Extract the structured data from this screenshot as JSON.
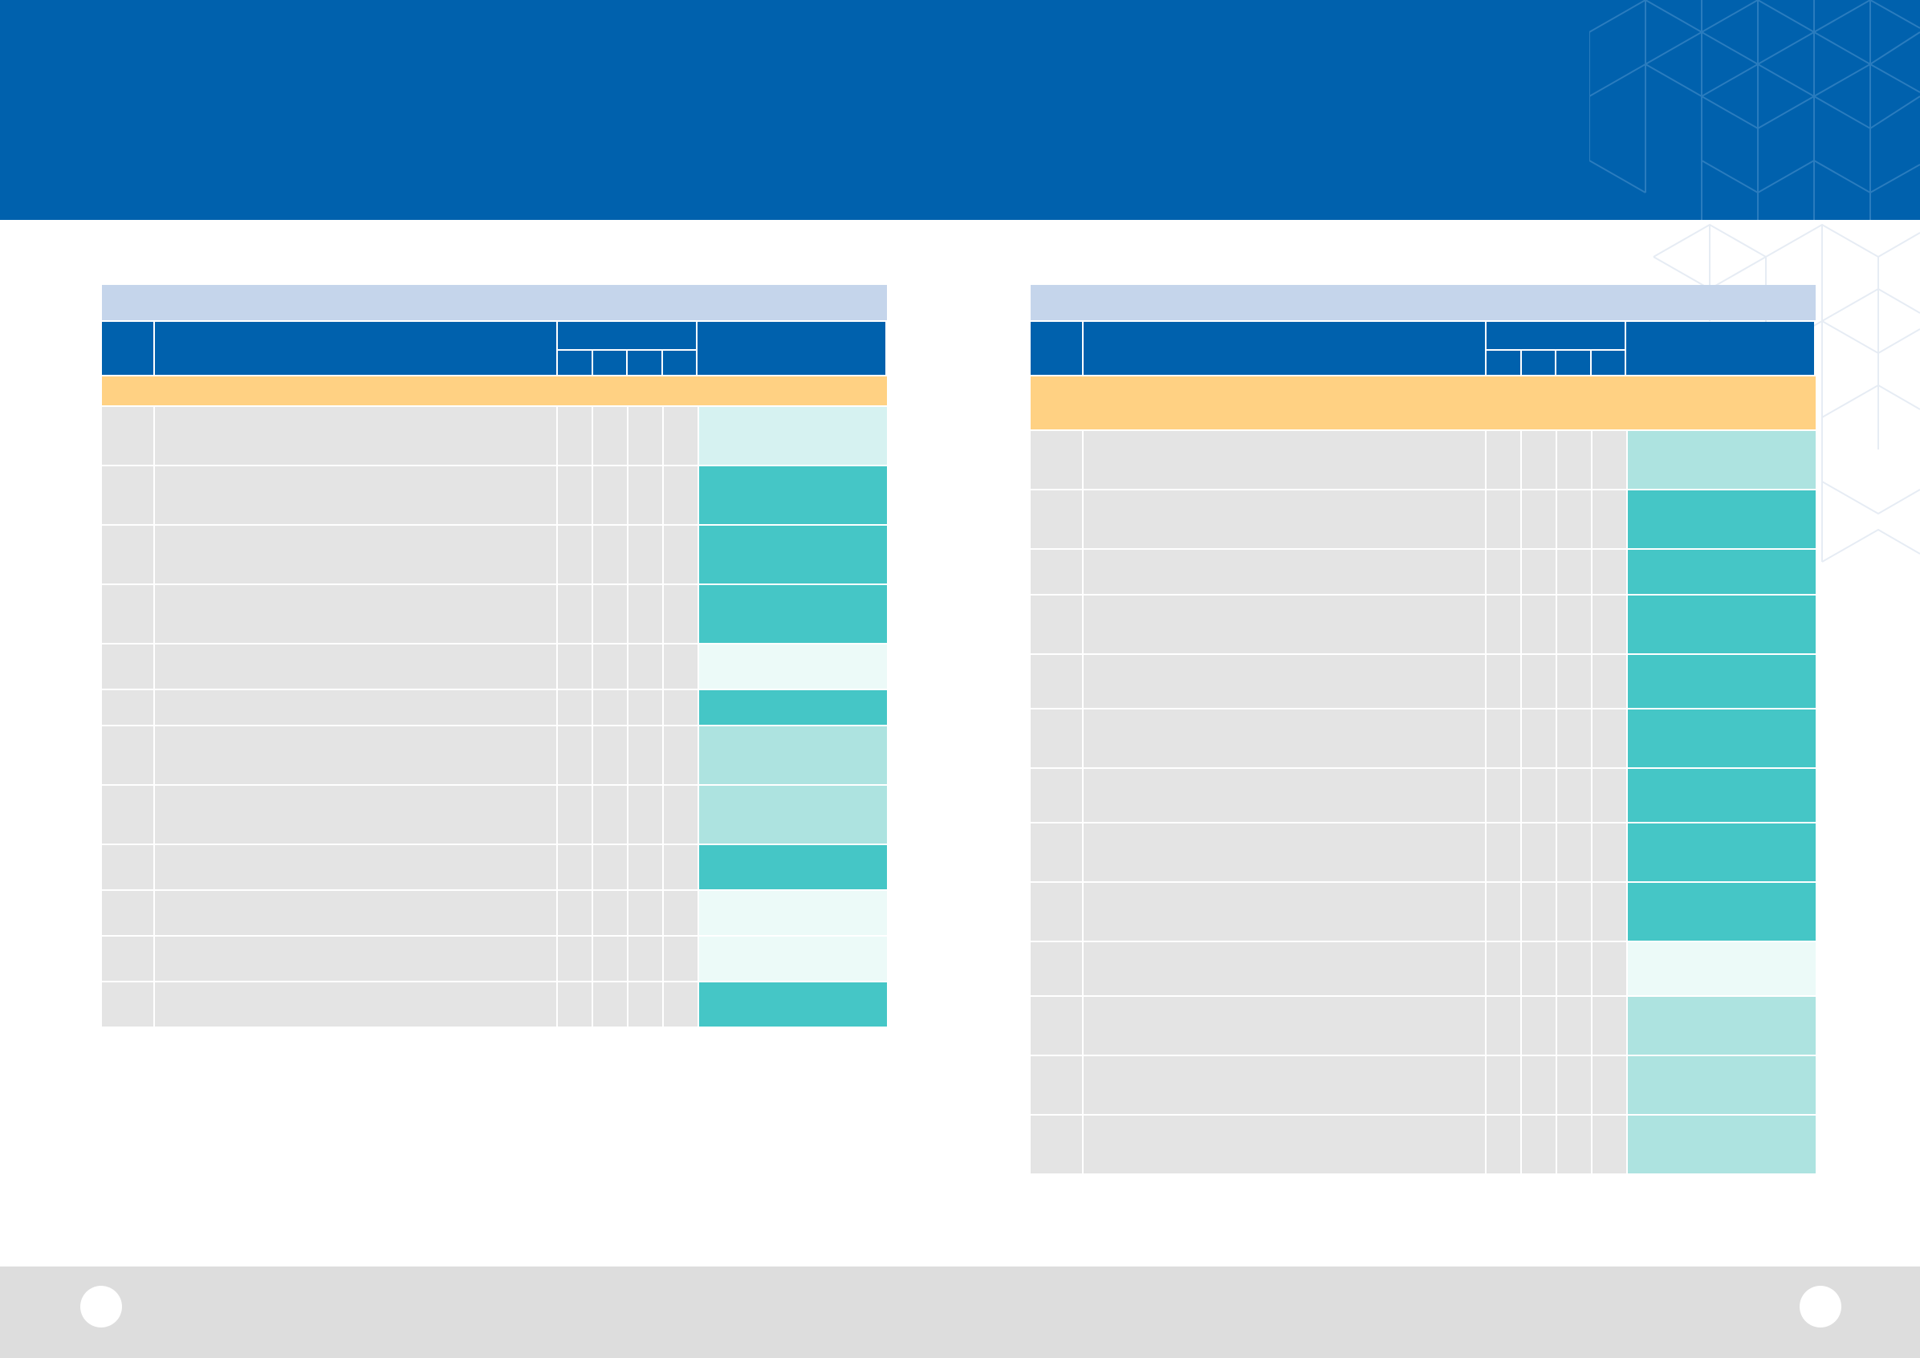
{
  "header": {
    "title": ""
  },
  "colors": {
    "header_blue": "#0061ad",
    "title_bar": "#c5d5eb",
    "section_bar": "#ffd183",
    "row_gray": "#e4e4e4",
    "status_levels": {
      "faint": "#ecfaf8",
      "pale": "#d6f2f1",
      "light": "#ade3e0",
      "full": "#45c6c6"
    }
  },
  "icons": {
    "background_pattern": "hexagon-lattice-icon"
  },
  "footer": {
    "left_page": "",
    "right_page": ""
  },
  "tables": [
    {
      "title": "",
      "columns": {
        "no": "",
        "item": "",
        "group": "",
        "sub": [
          "",
          "",
          "",
          ""
        ],
        "status": ""
      },
      "section": "",
      "rows": [
        {
          "no": "",
          "item": "",
          "c1": "",
          "c2": "",
          "c3": "",
          "c4": "",
          "status": "",
          "level": "pale"
        },
        {
          "no": "",
          "item": "",
          "c1": "",
          "c2": "",
          "c3": "",
          "c4": "",
          "status": "",
          "level": "full"
        },
        {
          "no": "",
          "item": "",
          "c1": "",
          "c2": "",
          "c3": "",
          "c4": "",
          "status": "",
          "level": "full"
        },
        {
          "no": "",
          "item": "",
          "c1": "",
          "c2": "",
          "c3": "",
          "c4": "",
          "status": "",
          "level": "full"
        },
        {
          "no": "",
          "item": "",
          "c1": "",
          "c2": "",
          "c3": "",
          "c4": "",
          "status": "",
          "level": "faint"
        },
        {
          "no": "",
          "item": "",
          "c1": "",
          "c2": "",
          "c3": "",
          "c4": "",
          "status": "",
          "level": "full"
        },
        {
          "no": "",
          "item": "",
          "c1": "",
          "c2": "",
          "c3": "",
          "c4": "",
          "status": "",
          "level": "light"
        },
        {
          "no": "",
          "item": "",
          "c1": "",
          "c2": "",
          "c3": "",
          "c4": "",
          "status": "",
          "level": "light"
        },
        {
          "no": "",
          "item": "",
          "c1": "",
          "c2": "",
          "c3": "",
          "c4": "",
          "status": "",
          "level": "full"
        },
        {
          "no": "",
          "item": "",
          "c1": "",
          "c2": "",
          "c3": "",
          "c4": "",
          "status": "",
          "level": "faint"
        },
        {
          "no": "",
          "item": "",
          "c1": "",
          "c2": "",
          "c3": "",
          "c4": "",
          "status": "",
          "level": "faint"
        },
        {
          "no": "",
          "item": "",
          "c1": "",
          "c2": "",
          "c3": "",
          "c4": "",
          "status": "",
          "level": "full"
        }
      ]
    },
    {
      "title": "",
      "columns": {
        "no": "",
        "item": "",
        "group": "",
        "sub": [
          "",
          "",
          "",
          ""
        ],
        "status": ""
      },
      "section": "",
      "rows": [
        {
          "no": "",
          "item": "",
          "c1": "",
          "c2": "",
          "c3": "",
          "c4": "",
          "status": "",
          "level": "light"
        },
        {
          "no": "",
          "item": "",
          "c1": "",
          "c2": "",
          "c3": "",
          "c4": "",
          "status": "",
          "level": "full"
        },
        {
          "no": "",
          "item": "",
          "c1": "",
          "c2": "",
          "c3": "",
          "c4": "",
          "status": "",
          "level": "full"
        },
        {
          "no": "",
          "item": "",
          "c1": "",
          "c2": "",
          "c3": "",
          "c4": "",
          "status": "",
          "level": "full"
        },
        {
          "no": "",
          "item": "",
          "c1": "",
          "c2": "",
          "c3": "",
          "c4": "",
          "status": "",
          "level": "full"
        },
        {
          "no": "",
          "item": "",
          "c1": "",
          "c2": "",
          "c3": "",
          "c4": "",
          "status": "",
          "level": "full"
        },
        {
          "no": "",
          "item": "",
          "c1": "",
          "c2": "",
          "c3": "",
          "c4": "",
          "status": "",
          "level": "full"
        },
        {
          "no": "",
          "item": "",
          "c1": "",
          "c2": "",
          "c3": "",
          "c4": "",
          "status": "",
          "level": "full"
        },
        {
          "no": "",
          "item": "",
          "c1": "",
          "c2": "",
          "c3": "",
          "c4": "",
          "status": "",
          "level": "full"
        },
        {
          "no": "",
          "item": "",
          "c1": "",
          "c2": "",
          "c3": "",
          "c4": "",
          "status": "",
          "level": "faint"
        },
        {
          "no": "",
          "item": "",
          "c1": "",
          "c2": "",
          "c3": "",
          "c4": "",
          "status": "",
          "level": "light"
        },
        {
          "no": "",
          "item": "",
          "c1": "",
          "c2": "",
          "c3": "",
          "c4": "",
          "status": "",
          "level": "light"
        },
        {
          "no": "",
          "item": "",
          "c1": "",
          "c2": "",
          "c3": "",
          "c4": "",
          "status": "",
          "level": "light"
        }
      ]
    }
  ]
}
